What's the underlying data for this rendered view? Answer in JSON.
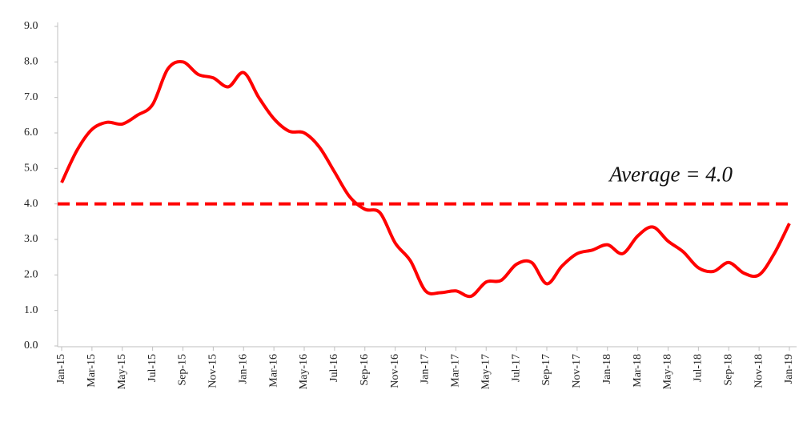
{
  "chart_data": {
    "type": "line",
    "categories": [
      "Jan-15",
      null,
      "Mar-15",
      null,
      "May-15",
      null,
      "Jul-15",
      null,
      "Sep-15",
      null,
      "Nov-15",
      null,
      "Jan-16",
      null,
      "Mar-16",
      null,
      "May-16",
      null,
      "Jul-16",
      null,
      "Sep-16",
      null,
      "Nov-16",
      null,
      "Jan-17",
      null,
      "Mar-17",
      null,
      "May-17",
      null,
      "Jul-17",
      null,
      "Sep-17",
      null,
      "Nov-17",
      null,
      "Jan-18",
      null,
      "Mar-18",
      null,
      "May-18",
      null,
      "Jul-18",
      null,
      "Sep-18",
      null,
      "Nov-18",
      null,
      "Jan-19"
    ],
    "values": [
      4.6,
      5.5,
      6.1,
      6.3,
      6.25,
      6.5,
      6.8,
      7.8,
      8.0,
      7.65,
      7.55,
      7.3,
      7.7,
      7.0,
      6.4,
      6.05,
      6.0,
      5.6,
      4.9,
      4.2,
      3.85,
      3.75,
      2.9,
      2.4,
      1.55,
      1.5,
      1.55,
      1.4,
      1.8,
      1.85,
      2.3,
      2.35,
      1.75,
      2.25,
      2.6,
      2.7,
      2.85,
      2.6,
      3.1,
      3.35,
      2.95,
      2.65,
      2.2,
      2.1,
      2.35,
      2.05,
      2.0,
      2.6,
      3.45
    ],
    "color": "#ff0000",
    "reference_line": {
      "value": 4.0,
      "label": "Average = 4.0",
      "color": "#ff0000"
    },
    "ylim": [
      0,
      9
    ],
    "yticks": [
      {
        "value": 0,
        "label": "0.0"
      },
      {
        "value": 1,
        "label": "1.0"
      },
      {
        "value": 2,
        "label": "2.0"
      },
      {
        "value": 3,
        "label": "3.0"
      },
      {
        "value": 4,
        "label": "4.0"
      },
      {
        "value": 5,
        "label": "5.0"
      },
      {
        "value": 6,
        "label": "6.0"
      },
      {
        "value": 7,
        "label": "7.0"
      },
      {
        "value": 8,
        "label": "8.0"
      },
      {
        "value": 9,
        "label": "9.0"
      }
    ]
  }
}
